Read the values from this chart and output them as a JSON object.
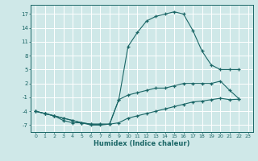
{
  "xlabel": "Humidex (Indice chaleur)",
  "bg_color": "#cfe8e8",
  "grid_color": "#ffffff",
  "line_color": "#1a6666",
  "xlim": [
    -0.5,
    23.5
  ],
  "ylim": [
    -8.5,
    19.0
  ],
  "yticks": [
    -7,
    -4,
    -1,
    2,
    5,
    8,
    11,
    14,
    17
  ],
  "xticks": [
    0,
    1,
    2,
    3,
    4,
    5,
    6,
    7,
    8,
    9,
    10,
    11,
    12,
    13,
    14,
    15,
    16,
    17,
    18,
    19,
    20,
    21,
    22,
    23
  ],
  "xtick_labels": [
    "0",
    "1",
    "2",
    "3",
    "4",
    "5",
    "6",
    "7",
    "8",
    "9",
    "10",
    "11",
    "12",
    "13",
    "14",
    "15",
    "16",
    "17",
    "18",
    "19",
    "20",
    "21",
    "22",
    "23"
  ],
  "line1_x": [
    0,
    1,
    2,
    3,
    4,
    5,
    6,
    7,
    8,
    9,
    10,
    11,
    12,
    13,
    14,
    15,
    16,
    17,
    18,
    19,
    20,
    21,
    22
  ],
  "line1_y": [
    -4,
    -4.5,
    -5,
    -6,
    -6.5,
    -6.5,
    -7,
    -7,
    -6.8,
    -1.5,
    10,
    13,
    15.5,
    16.5,
    17,
    17.5,
    17,
    13.5,
    9,
    6,
    5,
    5,
    5
  ],
  "line2_x": [
    0,
    1,
    2,
    3,
    4,
    5,
    6,
    7,
    8,
    9,
    10,
    11,
    12,
    13,
    14,
    15,
    16,
    17,
    18,
    19,
    20,
    21,
    22
  ],
  "line2_y": [
    -4,
    -4.5,
    -5,
    -5.5,
    -6,
    -6.5,
    -6.8,
    -6.8,
    -6.8,
    -1.5,
    -0.5,
    0,
    0.5,
    1,
    1,
    1.5,
    2,
    2,
    2,
    2,
    2.5,
    0.5,
    -1.3
  ],
  "line3_x": [
    0,
    1,
    2,
    3,
    4,
    5,
    6,
    7,
    8,
    9,
    10,
    11,
    12,
    13,
    14,
    15,
    16,
    17,
    18,
    19,
    20,
    21,
    22
  ],
  "line3_y": [
    -4,
    -4.5,
    -5,
    -5.5,
    -6,
    -6.5,
    -6.8,
    -6.8,
    -6.8,
    -6.5,
    -5.5,
    -5,
    -4.5,
    -4,
    -3.5,
    -3,
    -2.5,
    -2,
    -1.8,
    -1.5,
    -1.2,
    -1.5,
    -1.4
  ]
}
